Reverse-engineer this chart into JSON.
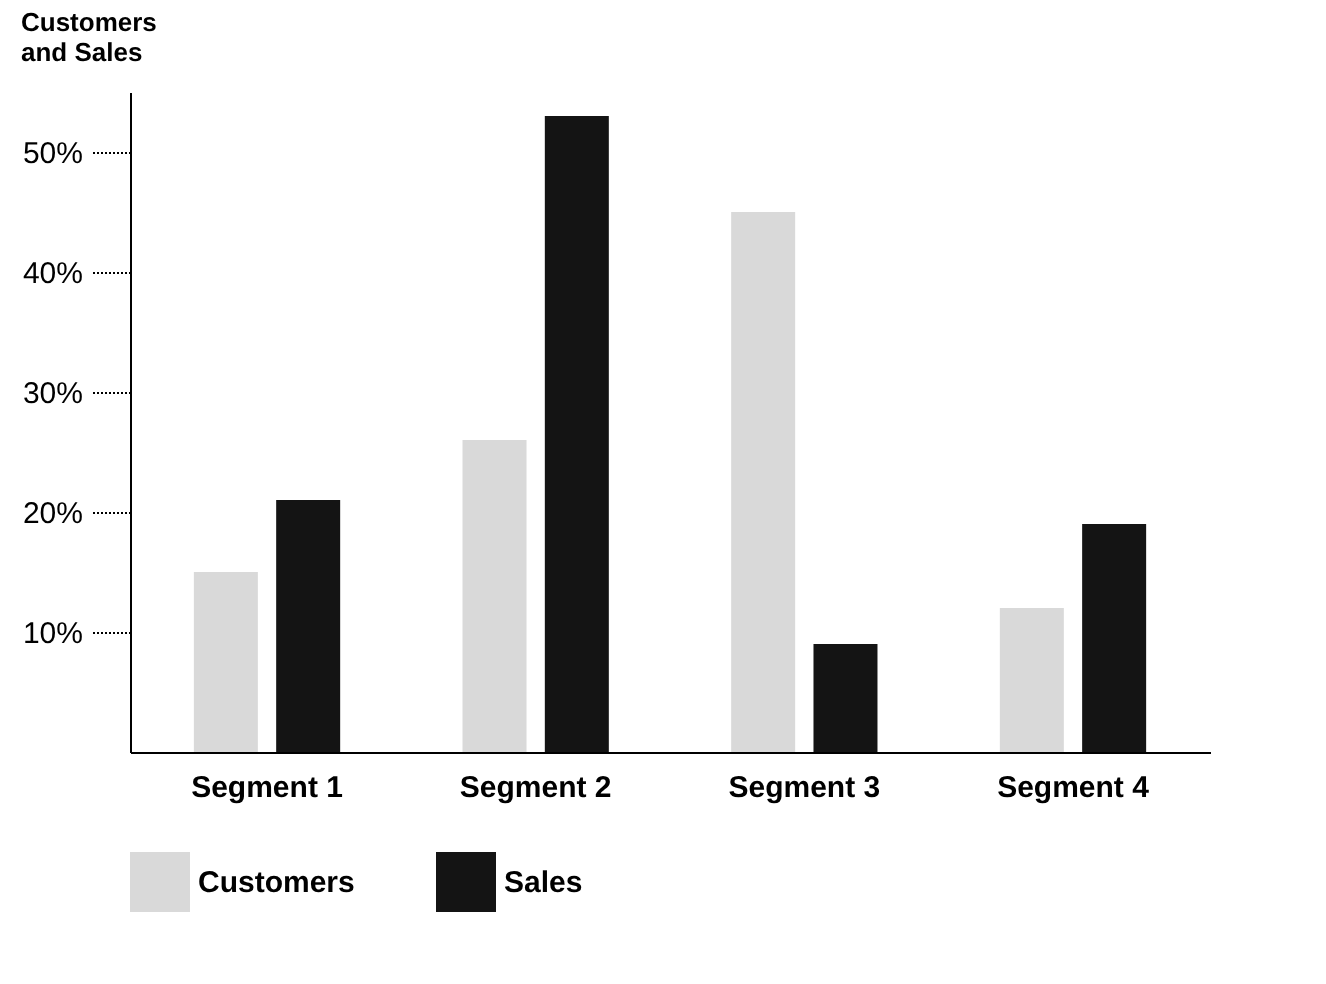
{
  "chart_data": {
    "type": "bar",
    "ylabel": "Customers\nand Sales",
    "categories": [
      "Segment 1",
      "Segment 2",
      "Segment 3",
      "Segment 4"
    ],
    "series": [
      {
        "name": "Customers",
        "color": "#d9d9d9",
        "values": [
          15,
          26,
          45,
          12
        ]
      },
      {
        "name": "Sales",
        "color": "#141414",
        "values": [
          21,
          53,
          9,
          19
        ]
      }
    ],
    "ylim": [
      0,
      55
    ],
    "yticks": [
      {
        "value": 10,
        "label": "10%"
      },
      {
        "value": 20,
        "label": "20%"
      },
      {
        "value": 30,
        "label": "30%"
      },
      {
        "value": 40,
        "label": "40%"
      },
      {
        "value": 50,
        "label": "50%"
      }
    ],
    "grid": false,
    "legend": "bottom"
  }
}
